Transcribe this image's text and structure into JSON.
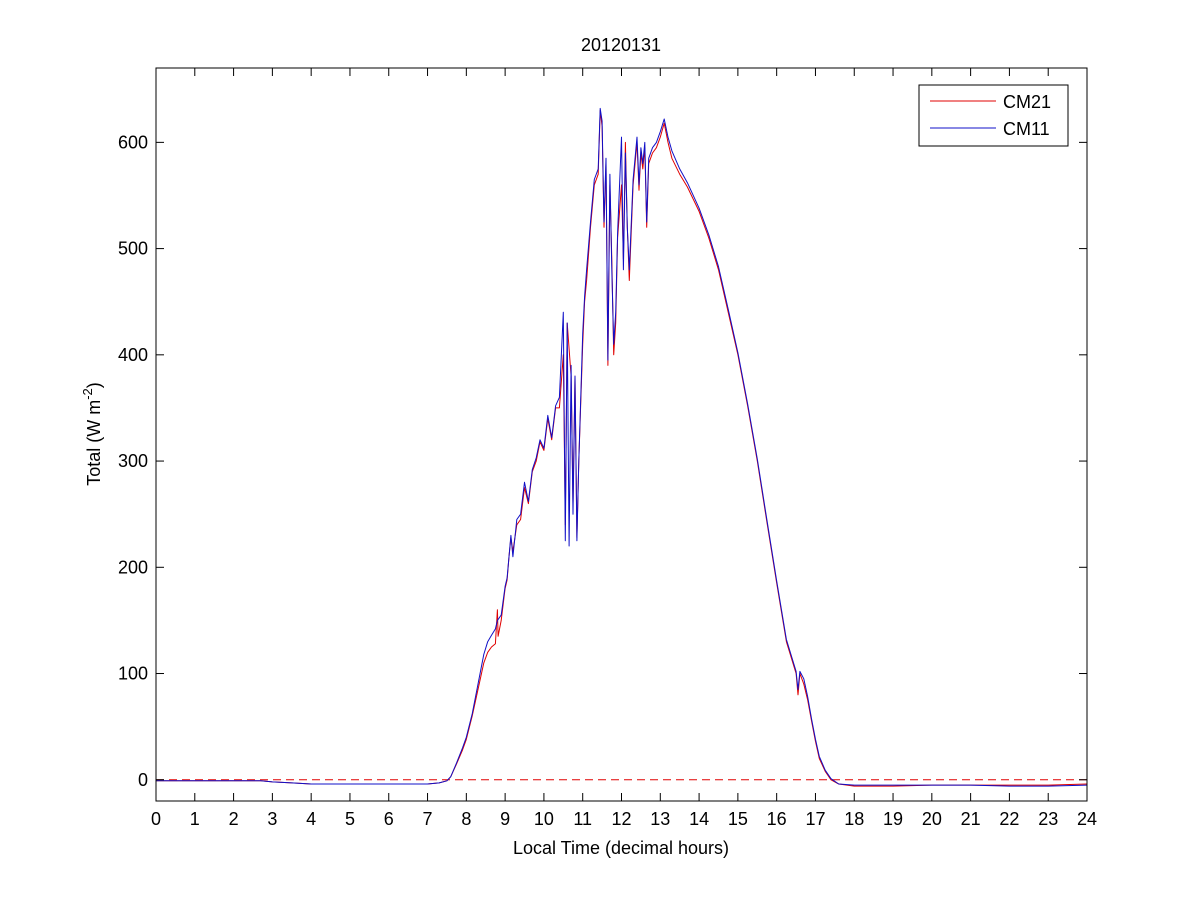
{
  "chart_data": {
    "type": "line",
    "title": "20120131",
    "xlabel": "Local Time (decimal hours)",
    "ylabel": "Total (W m",
    "ylabel_superscript": "-2",
    "ylabel_suffix": ")",
    "xlim": [
      0,
      24
    ],
    "ylim": [
      -20,
      670
    ],
    "xticks": [
      0,
      1,
      2,
      3,
      4,
      5,
      6,
      7,
      8,
      9,
      10,
      11,
      12,
      13,
      14,
      15,
      16,
      17,
      18,
      19,
      20,
      21,
      22,
      23,
      24
    ],
    "yticks": [
      0,
      100,
      200,
      300,
      400,
      500,
      600
    ],
    "grid": false,
    "legend_placement": "top-right",
    "reference_line": {
      "y": 0,
      "color": "#e00000",
      "style": "dashed"
    },
    "series": [
      {
        "name": "CM21",
        "color": "#e00000",
        "points": [
          [
            0,
            -1
          ],
          [
            1,
            -1
          ],
          [
            2,
            -1
          ],
          [
            2.7,
            -1
          ],
          [
            3,
            -2
          ],
          [
            3.5,
            -3
          ],
          [
            4,
            -4
          ],
          [
            5,
            -4
          ],
          [
            6,
            -4
          ],
          [
            7,
            -4
          ],
          [
            7.3,
            -3
          ],
          [
            7.5,
            -1
          ],
          [
            7.6,
            3
          ],
          [
            7.75,
            15
          ],
          [
            7.9,
            28
          ],
          [
            8,
            38
          ],
          [
            8.15,
            60
          ],
          [
            8.3,
            85
          ],
          [
            8.45,
            110
          ],
          [
            8.55,
            120
          ],
          [
            8.65,
            125
          ],
          [
            8.75,
            128
          ],
          [
            8.8,
            160
          ],
          [
            8.82,
            135
          ],
          [
            8.9,
            150
          ],
          [
            9,
            180
          ],
          [
            9.05,
            188
          ],
          [
            9.1,
            210
          ],
          [
            9.15,
            228
          ],
          [
            9.2,
            215
          ],
          [
            9.3,
            240
          ],
          [
            9.4,
            245
          ],
          [
            9.5,
            275
          ],
          [
            9.6,
            260
          ],
          [
            9.7,
            290
          ],
          [
            9.8,
            300
          ],
          [
            9.9,
            318
          ],
          [
            10,
            310
          ],
          [
            10.1,
            340
          ],
          [
            10.2,
            320
          ],
          [
            10.3,
            350
          ],
          [
            10.4,
            350
          ],
          [
            10.5,
            400
          ],
          [
            10.55,
            240
          ],
          [
            10.6,
            430
          ],
          [
            10.7,
            380
          ],
          [
            10.75,
            260
          ],
          [
            10.8,
            380
          ],
          [
            10.85,
            228
          ],
          [
            10.9,
            300
          ],
          [
            11,
            410
          ],
          [
            11.05,
            450
          ],
          [
            11.1,
            470
          ],
          [
            11.2,
            520
          ],
          [
            11.3,
            560
          ],
          [
            11.4,
            570
          ],
          [
            11.45,
            630
          ],
          [
            11.5,
            615
          ],
          [
            11.55,
            520
          ],
          [
            11.6,
            580
          ],
          [
            11.65,
            390
          ],
          [
            11.7,
            560
          ],
          [
            11.75,
            490
          ],
          [
            11.8,
            400
          ],
          [
            11.85,
            430
          ],
          [
            11.9,
            510
          ],
          [
            12,
            560
          ],
          [
            12.05,
            490
          ],
          [
            12.1,
            600
          ],
          [
            12.15,
            520
          ],
          [
            12.2,
            470
          ],
          [
            12.3,
            560
          ],
          [
            12.4,
            600
          ],
          [
            12.45,
            555
          ],
          [
            12.5,
            590
          ],
          [
            12.55,
            575
          ],
          [
            12.6,
            595
          ],
          [
            12.65,
            520
          ],
          [
            12.7,
            580
          ],
          [
            12.8,
            590
          ],
          [
            12.9,
            595
          ],
          [
            13,
            605
          ],
          [
            13.1,
            618
          ],
          [
            13.2,
            600
          ],
          [
            13.3,
            585
          ],
          [
            13.5,
            570
          ],
          [
            13.7,
            558
          ],
          [
            14,
            535
          ],
          [
            14.25,
            510
          ],
          [
            14.5,
            480
          ],
          [
            14.75,
            440
          ],
          [
            15,
            400
          ],
          [
            15.25,
            352
          ],
          [
            15.5,
            300
          ],
          [
            15.75,
            242
          ],
          [
            16,
            185
          ],
          [
            16.25,
            130
          ],
          [
            16.5,
            100
          ],
          [
            16.55,
            80
          ],
          [
            16.6,
            100
          ],
          [
            16.7,
            90
          ],
          [
            16.8,
            75
          ],
          [
            16.9,
            55
          ],
          [
            17,
            36
          ],
          [
            17.1,
            20
          ],
          [
            17.25,
            8
          ],
          [
            17.4,
            0
          ],
          [
            17.6,
            -4
          ],
          [
            18,
            -6
          ],
          [
            19,
            -6
          ],
          [
            20,
            -5
          ],
          [
            21,
            -5
          ],
          [
            22,
            -5
          ],
          [
            23,
            -5
          ],
          [
            24,
            -4
          ]
        ]
      },
      {
        "name": "CM11",
        "color": "#1010c8",
        "points": [
          [
            0,
            -1
          ],
          [
            1,
            -1
          ],
          [
            2,
            -1
          ],
          [
            2.7,
            -1
          ],
          [
            3,
            -2
          ],
          [
            3.5,
            -3
          ],
          [
            4,
            -4
          ],
          [
            5,
            -4
          ],
          [
            6,
            -4
          ],
          [
            7,
            -4
          ],
          [
            7.3,
            -3
          ],
          [
            7.5,
            -1
          ],
          [
            7.6,
            3
          ],
          [
            7.75,
            16
          ],
          [
            7.9,
            30
          ],
          [
            8,
            40
          ],
          [
            8.15,
            62
          ],
          [
            8.3,
            90
          ],
          [
            8.45,
            118
          ],
          [
            8.55,
            130
          ],
          [
            8.65,
            136
          ],
          [
            8.75,
            142
          ],
          [
            8.8,
            150
          ],
          [
            8.9,
            155
          ],
          [
            9,
            182
          ],
          [
            9.05,
            190
          ],
          [
            9.1,
            210
          ],
          [
            9.15,
            230
          ],
          [
            9.2,
            210
          ],
          [
            9.3,
            245
          ],
          [
            9.4,
            250
          ],
          [
            9.5,
            280
          ],
          [
            9.6,
            262
          ],
          [
            9.7,
            292
          ],
          [
            9.8,
            303
          ],
          [
            9.9,
            320
          ],
          [
            10,
            312
          ],
          [
            10.1,
            343
          ],
          [
            10.2,
            322
          ],
          [
            10.3,
            352
          ],
          [
            10.4,
            360
          ],
          [
            10.5,
            440
          ],
          [
            10.55,
            225
          ],
          [
            10.6,
            430
          ],
          [
            10.65,
            220
          ],
          [
            10.7,
            390
          ],
          [
            10.75,
            250
          ],
          [
            10.8,
            380
          ],
          [
            10.85,
            225
          ],
          [
            10.9,
            300
          ],
          [
            11,
            420
          ],
          [
            11.05,
            455
          ],
          [
            11.1,
            480
          ],
          [
            11.2,
            525
          ],
          [
            11.3,
            565
          ],
          [
            11.4,
            575
          ],
          [
            11.45,
            632
          ],
          [
            11.5,
            620
          ],
          [
            11.55,
            525
          ],
          [
            11.6,
            585
          ],
          [
            11.65,
            395
          ],
          [
            11.7,
            570
          ],
          [
            11.75,
            480
          ],
          [
            11.8,
            410
          ],
          [
            11.85,
            440
          ],
          [
            11.9,
            515
          ],
          [
            12,
            605
          ],
          [
            12.05,
            480
          ],
          [
            12.1,
            590
          ],
          [
            12.15,
            520
          ],
          [
            12.2,
            480
          ],
          [
            12.3,
            565
          ],
          [
            12.4,
            605
          ],
          [
            12.45,
            560
          ],
          [
            12.5,
            595
          ],
          [
            12.55,
            580
          ],
          [
            12.6,
            600
          ],
          [
            12.65,
            525
          ],
          [
            12.7,
            585
          ],
          [
            12.8,
            595
          ],
          [
            12.9,
            600
          ],
          [
            13,
            610
          ],
          [
            13.1,
            622
          ],
          [
            13.2,
            605
          ],
          [
            13.3,
            592
          ],
          [
            13.5,
            575
          ],
          [
            13.7,
            562
          ],
          [
            14,
            538
          ],
          [
            14.25,
            513
          ],
          [
            14.5,
            483
          ],
          [
            14.75,
            443
          ],
          [
            15,
            402
          ],
          [
            15.25,
            354
          ],
          [
            15.5,
            302
          ],
          [
            15.75,
            244
          ],
          [
            16,
            187
          ],
          [
            16.25,
            132
          ],
          [
            16.5,
            102
          ],
          [
            16.55,
            85
          ],
          [
            16.6,
            102
          ],
          [
            16.7,
            95
          ],
          [
            16.8,
            78
          ],
          [
            16.9,
            57
          ],
          [
            17,
            38
          ],
          [
            17.1,
            22
          ],
          [
            17.25,
            9
          ],
          [
            17.4,
            1
          ],
          [
            17.6,
            -4
          ],
          [
            18,
            -5
          ],
          [
            19,
            -5
          ],
          [
            20,
            -5
          ],
          [
            21,
            -5
          ],
          [
            22,
            -6
          ],
          [
            23,
            -6
          ],
          [
            24,
            -5
          ]
        ]
      }
    ]
  }
}
